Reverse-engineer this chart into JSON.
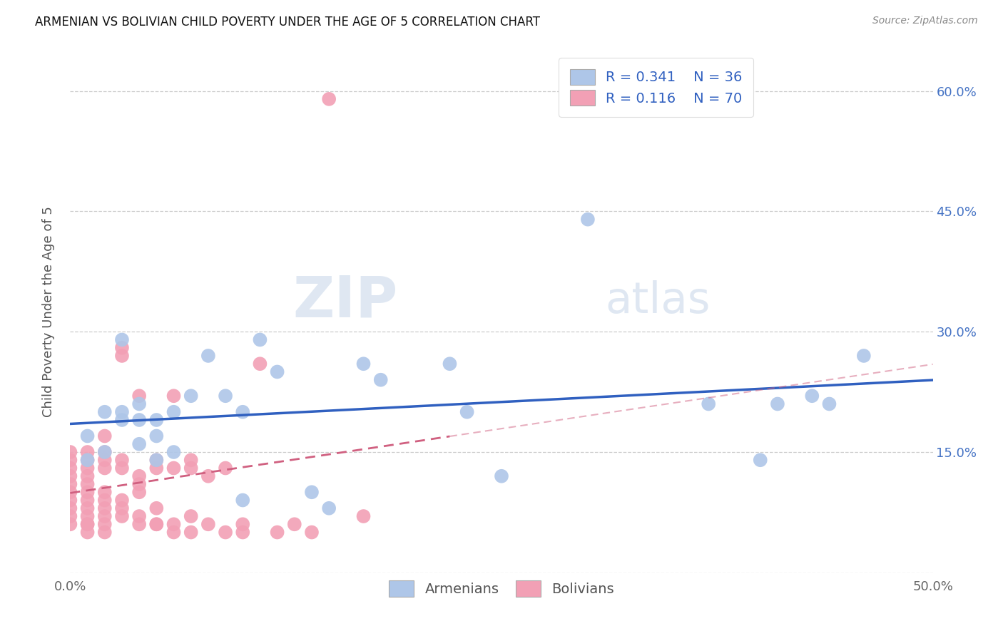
{
  "title": "ARMENIAN VS BOLIVIAN CHILD POVERTY UNDER THE AGE OF 5 CORRELATION CHART",
  "source": "Source: ZipAtlas.com",
  "ylabel": "Child Poverty Under the Age of 5",
  "xlim": [
    0.0,
    0.5
  ],
  "ylim": [
    0.0,
    0.65
  ],
  "armenian_R": 0.341,
  "armenian_N": 36,
  "bolivian_R": 0.116,
  "bolivian_N": 70,
  "armenian_color": "#aec6e8",
  "bolivian_color": "#f2a0b5",
  "armenian_line_color": "#3060c0",
  "bolivian_line_color": "#d06080",
  "legend_armenian_label": "Armenians",
  "legend_bolivian_label": "Bolivians",
  "armenian_x": [
    0.01,
    0.01,
    0.02,
    0.02,
    0.03,
    0.03,
    0.03,
    0.04,
    0.04,
    0.04,
    0.05,
    0.05,
    0.05,
    0.06,
    0.06,
    0.07,
    0.08,
    0.09,
    0.1,
    0.1,
    0.11,
    0.12,
    0.14,
    0.15,
    0.17,
    0.18,
    0.22,
    0.23,
    0.25,
    0.3,
    0.37,
    0.4,
    0.41,
    0.43,
    0.44,
    0.46
  ],
  "armenian_y": [
    0.14,
    0.17,
    0.15,
    0.2,
    0.19,
    0.2,
    0.29,
    0.16,
    0.19,
    0.21,
    0.14,
    0.17,
    0.19,
    0.15,
    0.2,
    0.22,
    0.27,
    0.22,
    0.09,
    0.2,
    0.29,
    0.25,
    0.1,
    0.08,
    0.26,
    0.24,
    0.26,
    0.2,
    0.12,
    0.44,
    0.21,
    0.14,
    0.21,
    0.22,
    0.21,
    0.27
  ],
  "bolivian_x": [
    0.0,
    0.0,
    0.0,
    0.0,
    0.0,
    0.0,
    0.0,
    0.0,
    0.0,
    0.0,
    0.01,
    0.01,
    0.01,
    0.01,
    0.01,
    0.01,
    0.01,
    0.01,
    0.01,
    0.01,
    0.01,
    0.01,
    0.02,
    0.02,
    0.02,
    0.02,
    0.02,
    0.02,
    0.02,
    0.02,
    0.02,
    0.02,
    0.03,
    0.03,
    0.03,
    0.03,
    0.03,
    0.03,
    0.03,
    0.04,
    0.04,
    0.04,
    0.04,
    0.04,
    0.04,
    0.05,
    0.05,
    0.05,
    0.05,
    0.05,
    0.06,
    0.06,
    0.06,
    0.06,
    0.07,
    0.07,
    0.07,
    0.07,
    0.08,
    0.08,
    0.09,
    0.09,
    0.1,
    0.1,
    0.11,
    0.12,
    0.13,
    0.14,
    0.15,
    0.17
  ],
  "bolivian_y": [
    0.09,
    0.1,
    0.11,
    0.12,
    0.13,
    0.14,
    0.15,
    0.06,
    0.07,
    0.08,
    0.08,
    0.09,
    0.1,
    0.11,
    0.12,
    0.13,
    0.06,
    0.07,
    0.14,
    0.15,
    0.05,
    0.06,
    0.07,
    0.08,
    0.09,
    0.1,
    0.13,
    0.14,
    0.15,
    0.17,
    0.05,
    0.06,
    0.07,
    0.08,
    0.09,
    0.13,
    0.14,
    0.27,
    0.28,
    0.06,
    0.07,
    0.1,
    0.11,
    0.12,
    0.22,
    0.06,
    0.08,
    0.13,
    0.14,
    0.06,
    0.05,
    0.06,
    0.13,
    0.22,
    0.05,
    0.07,
    0.13,
    0.14,
    0.06,
    0.12,
    0.05,
    0.13,
    0.05,
    0.06,
    0.26,
    0.05,
    0.06,
    0.05,
    0.59,
    0.07
  ],
  "line_arm_x0": 0.0,
  "line_arm_x1": 0.5,
  "line_arm_y0": 0.135,
  "line_arm_y1": 0.265,
  "line_bol_x0": 0.0,
  "line_bol_x1": 0.22,
  "line_bol_y0": 0.135,
  "line_bol_y1": 0.235
}
